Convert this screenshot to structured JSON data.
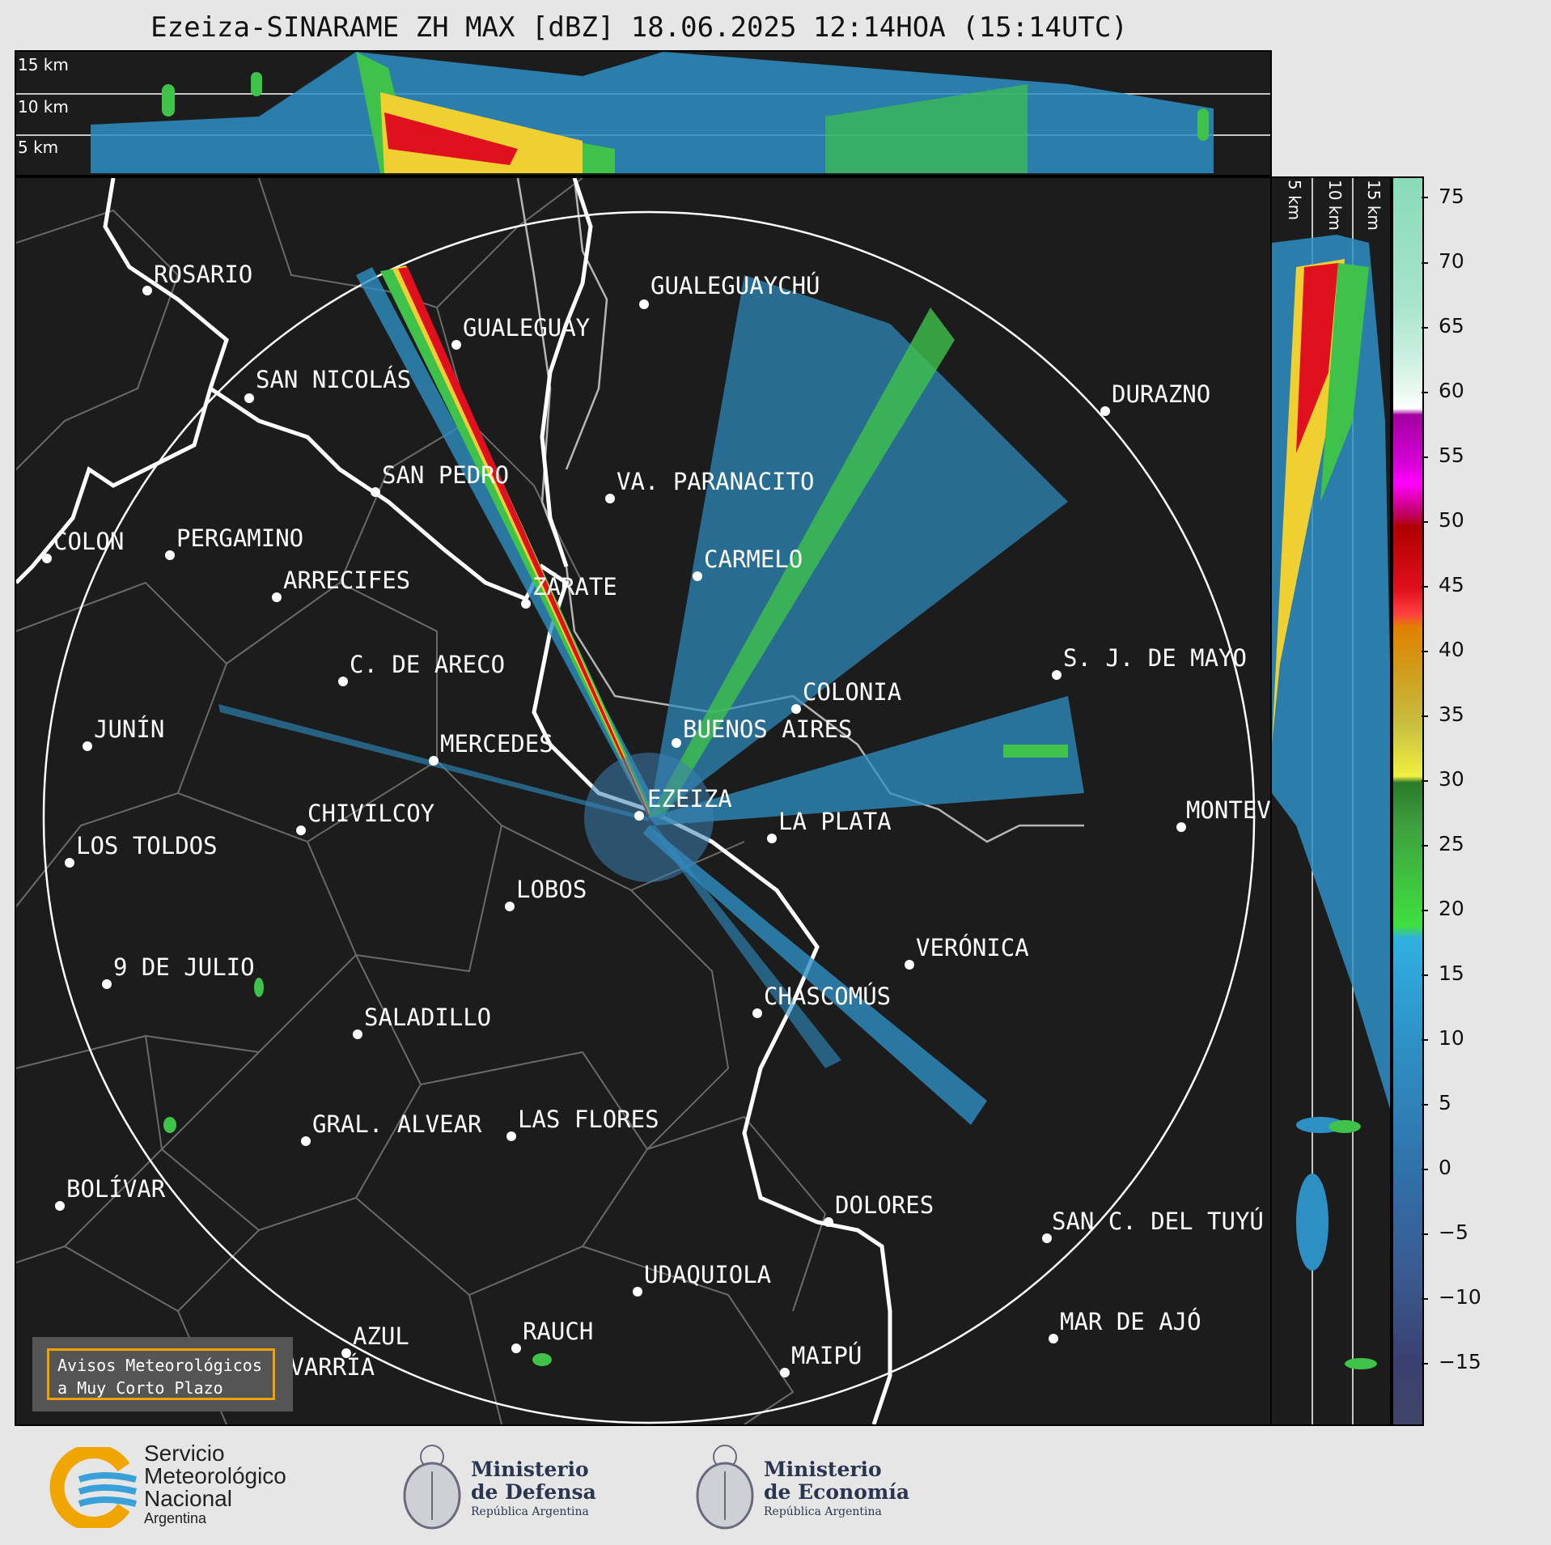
{
  "title": "Ezeiza-SINARAME ZH MAX [dBZ] 18.06.2025 12:14HOA (15:14UTC)",
  "top_height_labels": [
    "15 km",
    "10 km",
    "5 km"
  ],
  "side_height_labels": [
    "5 km",
    "10 km",
    "15 km"
  ],
  "cities": [
    {
      "name": "ROSARIO"
    },
    {
      "name": "GUALEGUAYCHÚ"
    },
    {
      "name": "GUALEGUAY"
    },
    {
      "name": "SAN NICOLÁS"
    },
    {
      "name": "DURAZNO"
    },
    {
      "name": "SAN PEDRO"
    },
    {
      "name": "VA. PARANACITO"
    },
    {
      "name": "COLON"
    },
    {
      "name": "PERGAMINO"
    },
    {
      "name": "CARMELO"
    },
    {
      "name": "ARRECIFES"
    },
    {
      "name": "ZÁRATE"
    },
    {
      "name": "C. DE ARECO"
    },
    {
      "name": "S. J. DE MAYO"
    },
    {
      "name": "COLONIA"
    },
    {
      "name": "JUNÍN"
    },
    {
      "name": "BUENOS AIRES"
    },
    {
      "name": "MERCEDES"
    },
    {
      "name": "EZEIZA"
    },
    {
      "name": "MONTEVIDEO"
    },
    {
      "name": "CHIVILCOY"
    },
    {
      "name": "LA PLATA"
    },
    {
      "name": "LOS TOLDOS"
    },
    {
      "name": "LOBOS"
    },
    {
      "name": "VERÓNICA"
    },
    {
      "name": "9 DE JULIO"
    },
    {
      "name": "CHASCOMÚS"
    },
    {
      "name": "SALADILLO"
    },
    {
      "name": "GRAL. ALVEAR"
    },
    {
      "name": "LAS FLORES"
    },
    {
      "name": "BOLÍVAR"
    },
    {
      "name": "DOLORES"
    },
    {
      "name": "SAN C. DEL TUYÚ"
    },
    {
      "name": "UDAQUIOLA"
    },
    {
      "name": "MAR DE AJÓ"
    },
    {
      "name": "RAUCH"
    },
    {
      "name": "AZUL"
    },
    {
      "name": "OLAVARRÍA"
    },
    {
      "name": "MAIPÚ"
    }
  ],
  "colorbar": {
    "unit": "dBZ",
    "ticks": [
      "75",
      "70",
      "65",
      "60",
      "55",
      "50",
      "45",
      "40",
      "35",
      "30",
      "25",
      "20",
      "15",
      "10",
      "5",
      "0",
      "−5",
      "−10",
      "−15"
    ]
  },
  "aviso": {
    "line1": "Avisos Meteorológicos",
    "line2": "a Muy Corto Plazo"
  },
  "footer": {
    "smn": {
      "line1": "Servicio",
      "line2": "Meteorológico",
      "line3": "Nacional",
      "line4": "Argentina"
    },
    "defensa": {
      "line1": "Ministerio",
      "line2": "de Defensa",
      "line3": "República Argentina"
    },
    "economia": {
      "line1": "Ministerio",
      "line2": "de Economía",
      "line3": "República Argentina"
    }
  }
}
